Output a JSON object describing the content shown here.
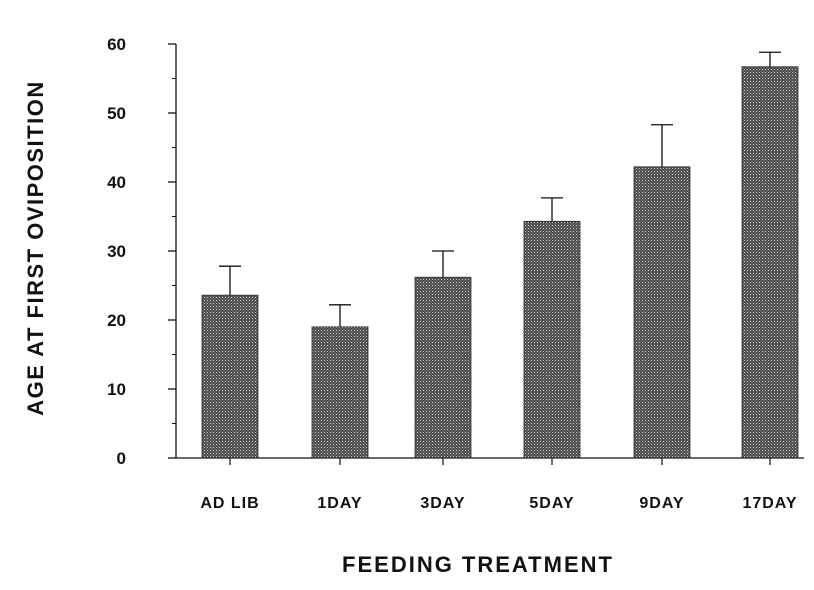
{
  "chart_data": {
    "type": "bar",
    "title": "",
    "xlabel": "FEEDING TREATMENT",
    "ylabel": "AGE AT FIRST OVIPOSITION",
    "categories": [
      "AD LIB",
      "1DAY",
      "3DAY",
      "5DAY",
      "9DAY",
      "17DAY"
    ],
    "values": [
      23.6,
      19.0,
      26.2,
      34.3,
      42.2,
      56.7
    ],
    "error_plus": [
      4.2,
      3.2,
      3.8,
      3.4,
      6.1,
      2.1
    ],
    "yticks": [
      0,
      10,
      20,
      30,
      40,
      50,
      60
    ],
    "ylim": [
      0,
      60
    ],
    "grid": false,
    "legend": "none",
    "bar_color": "#3a3a3a",
    "axis_color": "#111111"
  }
}
